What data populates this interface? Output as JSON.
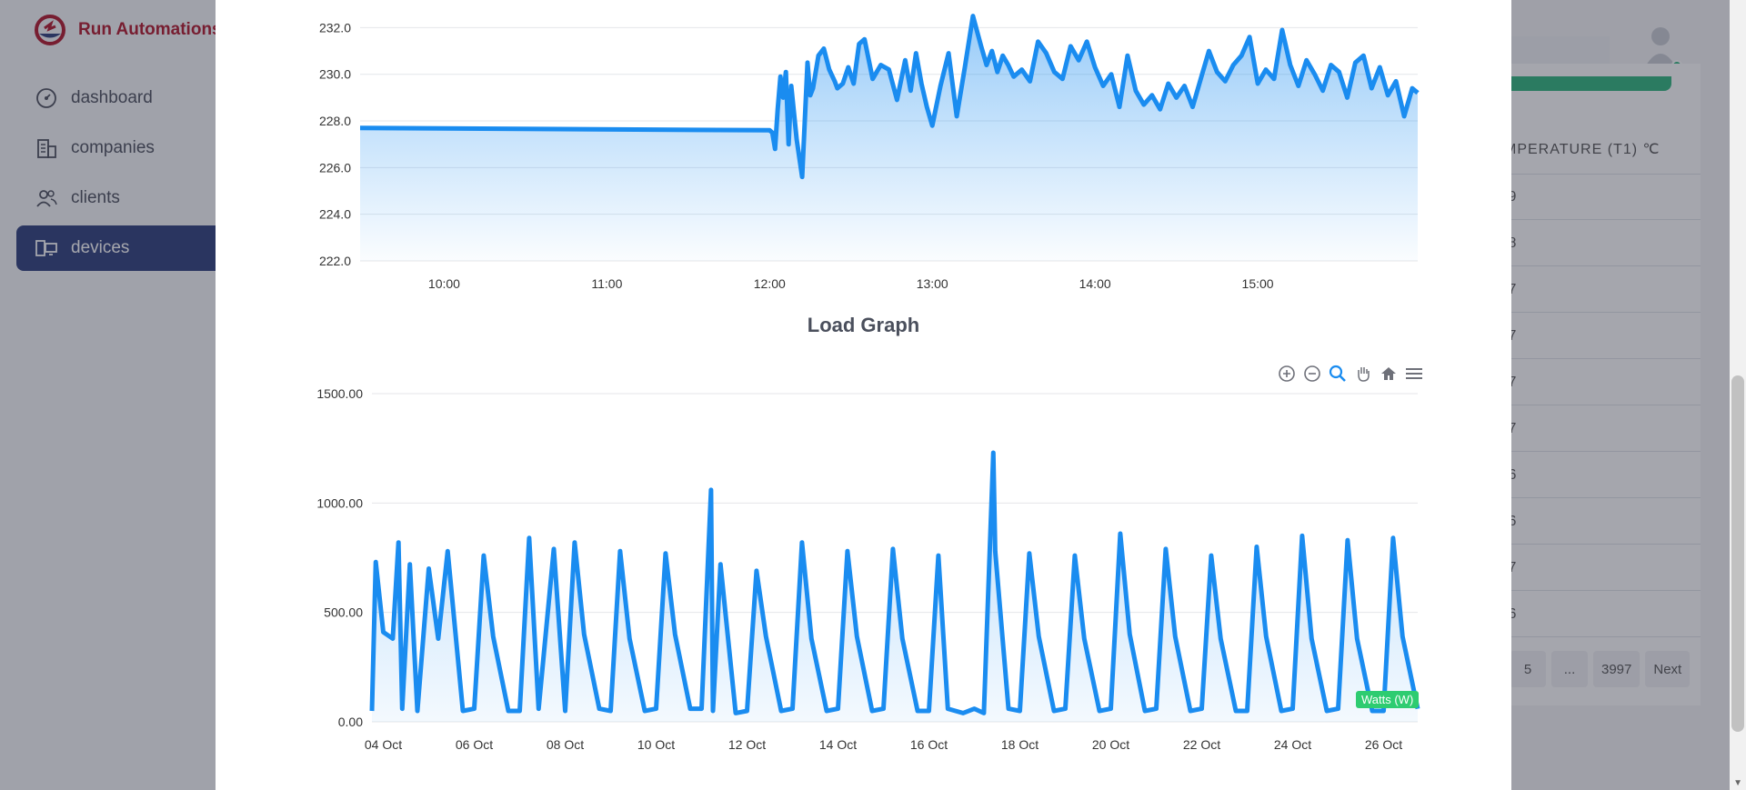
{
  "app": {
    "brand_name": "Run Automations",
    "brand_color": "#b0162a",
    "accent_color": "#2b3d7a"
  },
  "sidebar": {
    "items": [
      {
        "label": "dashboard",
        "icon": "dashboard-gauge-icon"
      },
      {
        "label": "companies",
        "icon": "building-icon"
      },
      {
        "label": "clients",
        "icon": "users-icon"
      },
      {
        "label": "devices",
        "icon": "devices-icon",
        "active": true
      }
    ]
  },
  "background_table": {
    "header": "MPERATURE (T1) ℃",
    "rows": [
      ".9",
      ".8",
      ".7",
      ".7",
      ".7",
      ".7",
      ".6",
      ".6",
      ".7",
      ".6"
    ],
    "pagination": [
      "5",
      "...",
      "3997",
      "Next"
    ]
  },
  "modal": {
    "load_graph_title": "Load Graph",
    "toolbar": [
      "zoom-in-icon",
      "zoom-out-icon",
      "zoom-select-icon",
      "pan-hand-icon",
      "reset-home-icon",
      "menu-icon"
    ]
  },
  "chart_data": [
    {
      "type": "area",
      "title": "",
      "xlabel": "",
      "ylabel": "",
      "x_ticks": [
        "10:00",
        "11:00",
        "12:00",
        "13:00",
        "14:00",
        "15:00"
      ],
      "y_ticks": [
        "222.0",
        "224.0",
        "226.0",
        "228.0",
        "230.0",
        "232.0"
      ],
      "ylim": [
        222,
        232.6
      ],
      "xlim": [
        "09:29",
        "15:59"
      ],
      "color": "#1a8cf0",
      "series": [
        {
          "x": [
            "09:29",
            "12:00",
            "12:01",
            "12:02",
            "12:03",
            "12:04",
            "12:05",
            "12:06",
            "12:07",
            "12:08",
            "12:10",
            "12:12",
            "12:14",
            "12:15",
            "12:16",
            "12:18",
            "12:20",
            "12:22",
            "12:24",
            "12:25",
            "12:27",
            "12:29",
            "12:31",
            "12:33",
            "12:35",
            "12:38",
            "12:41",
            "12:44",
            "12:47",
            "12:50",
            "12:52",
            "12:54",
            "12:56",
            "12:58",
            "13:00",
            "13:03",
            "13:06",
            "13:09",
            "13:12",
            "13:15",
            "13:18",
            "13:20",
            "13:22",
            "13:24",
            "13:26",
            "13:28",
            "13:30",
            "13:33",
            "13:36",
            "13:39",
            "13:42",
            "13:45",
            "13:48",
            "13:51",
            "13:54",
            "13:57",
            "14:00",
            "14:03",
            "14:06",
            "14:09",
            "14:12",
            "14:15",
            "14:18",
            "14:21",
            "14:24",
            "14:27",
            "14:30",
            "14:33",
            "14:36",
            "14:39",
            "14:42",
            "14:45",
            "14:48",
            "14:51",
            "14:54",
            "14:57",
            "15:00",
            "15:03",
            "15:06",
            "15:09",
            "15:12",
            "15:15",
            "15:18",
            "15:21",
            "15:24",
            "15:27",
            "15:30",
            "15:33",
            "15:36",
            "15:39",
            "15:42",
            "15:45",
            "15:48",
            "15:51",
            "15:54",
            "15:57",
            "15:59"
          ],
          "y": [
            227.7,
            227.6,
            227.5,
            226.8,
            228.5,
            229.9,
            229.0,
            230.1,
            227.0,
            229.5,
            227.2,
            225.6,
            230.5,
            229.1,
            229.4,
            230.8,
            231.1,
            230.2,
            229.7,
            229.4,
            229.6,
            230.3,
            229.6,
            231.3,
            231.5,
            229.8,
            230.4,
            230.2,
            228.9,
            230.6,
            229.3,
            230.9,
            229.6,
            228.6,
            227.8,
            229.5,
            230.9,
            228.2,
            230.3,
            232.5,
            231.2,
            230.4,
            231.0,
            230.1,
            230.8,
            230.4,
            229.9,
            230.2,
            229.7,
            231.4,
            230.9,
            230.1,
            229.8,
            231.2,
            230.6,
            231.4,
            230.3,
            229.5,
            230.0,
            228.6,
            230.8,
            229.3,
            228.7,
            229.1,
            228.5,
            229.6,
            229.0,
            229.5,
            228.6,
            229.8,
            231.0,
            230.1,
            229.7,
            230.4,
            230.8,
            231.6,
            229.6,
            230.2,
            229.8,
            231.9,
            230.4,
            229.5,
            230.6,
            230.0,
            229.3,
            230.4,
            230.1,
            229.0,
            230.5,
            230.8,
            229.4,
            230.3,
            229.1,
            229.7,
            228.2,
            229.4,
            229.2
          ]
        }
      ]
    },
    {
      "type": "area",
      "title": "Load Graph",
      "xlabel": "",
      "ylabel": "",
      "x_ticks": [
        "04 Oct",
        "06 Oct",
        "08 Oct",
        "10 Oct",
        "12 Oct",
        "14 Oct",
        "16 Oct",
        "18 Oct",
        "20 Oct",
        "22 Oct",
        "24 Oct",
        "26 Oct"
      ],
      "y_ticks": [
        "0.00",
        "500.00",
        "1000.00",
        "1500.00"
      ],
      "ylim": [
        0,
        1500
      ],
      "xlim": [
        "03 Oct 18:00",
        "26 Oct 18:00"
      ],
      "color": "#1a8cf0",
      "legend": "Watts (W)",
      "legend_color": "#2ecc71",
      "series": [
        {
          "name": "Watts (W)",
          "x": [
            "03 Oct 18:00",
            "03 Oct 20:00",
            "04 Oct 00:00",
            "04 Oct 05:00",
            "04 Oct 08:00",
            "04 Oct 10:00",
            "04 Oct 14:00",
            "04 Oct 18:00",
            "05 Oct 00:00",
            "05 Oct 05:00",
            "05 Oct 10:00",
            "05 Oct 18:00",
            "06 Oct 00:00",
            "06 Oct 05:00",
            "06 Oct 10:00",
            "06 Oct 18:00",
            "07 Oct 00:00",
            "07 Oct 05:00",
            "07 Oct 10:00",
            "07 Oct 18:00",
            "08 Oct 00:00",
            "08 Oct 05:00",
            "08 Oct 10:00",
            "08 Oct 18:00",
            "09 Oct 00:00",
            "09 Oct 05:00",
            "09 Oct 10:00",
            "09 Oct 18:00",
            "10 Oct 00:00",
            "10 Oct 05:00",
            "10 Oct 10:00",
            "10 Oct 18:00",
            "11 Oct 00:00",
            "11 Oct 05:00",
            "11 Oct 06:00",
            "11 Oct 10:00",
            "11 Oct 18:00",
            "12 Oct 00:00",
            "12 Oct 05:00",
            "12 Oct 10:00",
            "12 Oct 18:00",
            "13 Oct 00:00",
            "13 Oct 05:00",
            "13 Oct 10:00",
            "13 Oct 18:00",
            "14 Oct 00:00",
            "14 Oct 05:00",
            "14 Oct 10:00",
            "14 Oct 18:00",
            "15 Oct 00:00",
            "15 Oct 05:00",
            "15 Oct 10:00",
            "15 Oct 18:00",
            "16 Oct 00:00",
            "16 Oct 05:00",
            "16 Oct 10:00",
            "16 Oct 18:00",
            "17 Oct 00:00",
            "17 Oct 05:00",
            "17 Oct 10:00",
            "17 Oct 11:00",
            "17 Oct 18:00",
            "18 Oct 00:00",
            "18 Oct 05:00",
            "18 Oct 10:00",
            "18 Oct 18:00",
            "19 Oct 00:00",
            "19 Oct 05:00",
            "19 Oct 10:00",
            "19 Oct 18:00",
            "20 Oct 00:00",
            "20 Oct 05:00",
            "20 Oct 10:00",
            "20 Oct 18:00",
            "21 Oct 00:00",
            "21 Oct 05:00",
            "21 Oct 10:00",
            "21 Oct 18:00",
            "22 Oct 00:00",
            "22 Oct 05:00",
            "22 Oct 10:00",
            "22 Oct 18:00",
            "23 Oct 00:00",
            "23 Oct 05:00",
            "23 Oct 10:00",
            "23 Oct 18:00",
            "24 Oct 00:00",
            "24 Oct 05:00",
            "24 Oct 10:00",
            "24 Oct 18:00",
            "25 Oct 00:00",
            "25 Oct 05:00",
            "25 Oct 10:00",
            "25 Oct 18:00",
            "26 Oct 00:00",
            "26 Oct 05:00",
            "26 Oct 10:00",
            "26 Oct 18:00"
          ],
          "y": [
            50,
            730,
            410,
            380,
            820,
            60,
            720,
            50,
            700,
            380,
            780,
            50,
            60,
            760,
            390,
            50,
            50,
            840,
            60,
            790,
            50,
            820,
            400,
            60,
            50,
            780,
            380,
            50,
            60,
            770,
            400,
            60,
            60,
            1060,
            50,
            720,
            40,
            50,
            690,
            390,
            50,
            60,
            820,
            380,
            50,
            60,
            780,
            390,
            50,
            60,
            790,
            380,
            50,
            50,
            760,
            60,
            40,
            60,
            40,
            1230,
            780,
            60,
            50,
            770,
            390,
            50,
            60,
            760,
            380,
            50,
            60,
            860,
            400,
            50,
            60,
            790,
            390,
            50,
            60,
            760,
            380,
            50,
            50,
            800,
            390,
            50,
            60,
            850,
            380,
            50,
            60,
            830,
            380,
            50,
            50,
            840,
            390,
            60
          ]
        }
      ]
    }
  ]
}
